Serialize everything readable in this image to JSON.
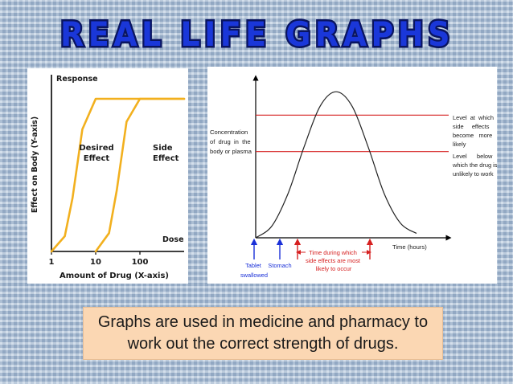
{
  "title": "REAL LIFE GRAPHS",
  "caption_lines": [
    "Graphs are used in medicine and pharmacy to",
    "work out the correct strength of drugs."
  ],
  "colors": {
    "curve_left": "#f2b01e",
    "ref_lines": "#d62020",
    "arrows_blue": "#1a30d8",
    "arrows_red": "#d62020",
    "caption_bg": "#fbd7b3",
    "title_fill": "#1a37d9"
  },
  "chart_data": [
    {
      "type": "line",
      "title": "",
      "ylabel": "Effect on Body (Y-axis)",
      "xlabel": "Amount of Drug (X-axis)",
      "y_axis_label_top": "Response",
      "x_axis_label_right": "Dose",
      "x_scale": "log",
      "x_ticks": [
        "1",
        "10",
        "100"
      ],
      "series": [
        {
          "name": "Desired Effect",
          "x": [
            1,
            2,
            3,
            5,
            10,
            20,
            40,
            100,
            1000
          ],
          "y": [
            0,
            0.1,
            0.35,
            0.8,
            1.0,
            1.0,
            1.0,
            1.0,
            1.0
          ]
        },
        {
          "name": "Side Effect",
          "x": [
            10,
            20,
            30,
            50,
            100,
            200,
            1000
          ],
          "y": [
            0,
            0.12,
            0.4,
            0.85,
            1.0,
            1.0,
            1.0
          ]
        }
      ],
      "annotations": [
        "Desired Effect",
        "Side Effect"
      ]
    },
    {
      "type": "line",
      "title": "",
      "ylabel": "",
      "xlabel": "Time (hours)",
      "series": [
        {
          "name": "",
          "x": [
            0,
            1,
            2,
            3,
            4,
            5,
            6,
            7,
            8,
            9,
            10
          ],
          "y": [
            0,
            0.08,
            0.3,
            0.62,
            0.9,
            1.0,
            0.9,
            0.62,
            0.3,
            0.1,
            0.03
          ]
        }
      ],
      "reference_lines": [
        {
          "y": 0.84,
          "label": "Level at which side effects become more likely"
        },
        {
          "y": 0.59,
          "label": "Level below which the drug is unlikely to work"
        }
      ],
      "annotations": [
        "Concentration of drug in the body or plasma",
        "Tablet swallowed",
        "Stomach",
        "Time during which side effects are most likely to occur"
      ],
      "ylim": [
        0,
        1.1
      ]
    }
  ]
}
